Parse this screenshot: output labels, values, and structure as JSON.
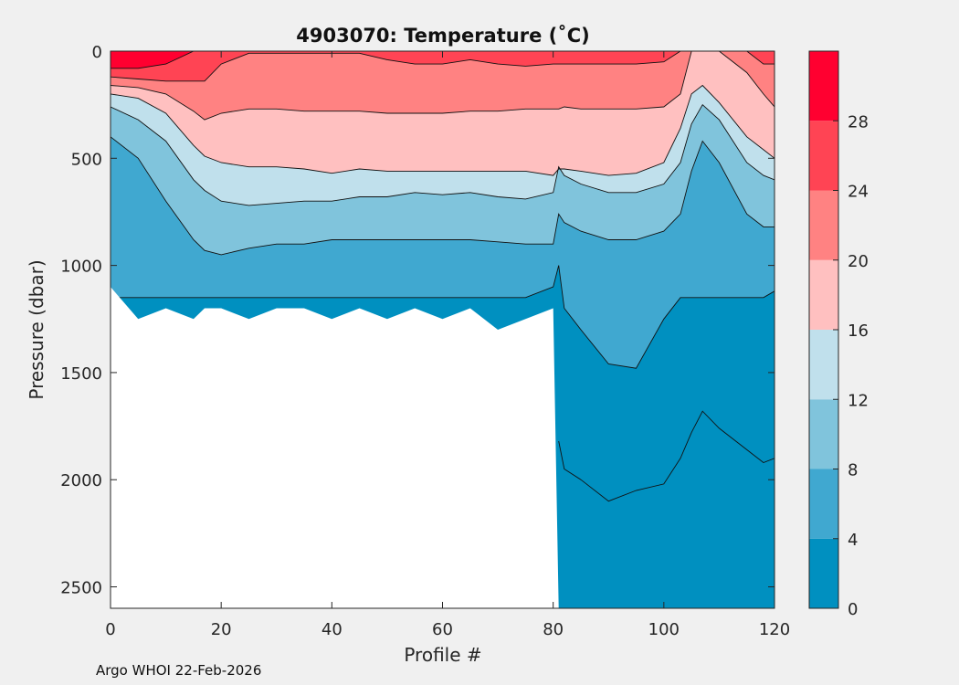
{
  "chart_data": {
    "type": "contour",
    "title": "4903070:  Temperature (˚C)",
    "xlabel": "Profile #",
    "ylabel": "Pressure (dbar)",
    "xlim": [
      0,
      120
    ],
    "ylim": [
      2600,
      0
    ],
    "x_ticks": [
      "0",
      "20",
      "40",
      "60",
      "80",
      "100",
      "120"
    ],
    "y_ticks": [
      "0",
      "500",
      "1000",
      "1500",
      "2000",
      "2500"
    ],
    "x_tick_values": [
      0,
      20,
      40,
      60,
      80,
      100,
      120
    ],
    "y_tick_values": [
      0,
      500,
      1000,
      1500,
      2000,
      2500
    ],
    "colorbar": {
      "levels": [
        0,
        4,
        8,
        12,
        16,
        20,
        24,
        28,
        32
      ],
      "tick_labels": [
        "0",
        "4",
        "8",
        "12",
        "16",
        "20",
        "24",
        "28"
      ],
      "tick_values": [
        0,
        4,
        8,
        12,
        16,
        20,
        24,
        28
      ],
      "colors": [
        "#0090c0",
        "#40a8d0",
        "#80c4dc",
        "#c0e0ec",
        "#ffc0c0",
        "#ff8282",
        "#ff4454",
        "#ff0030"
      ]
    },
    "profiles_x": [
      0,
      5,
      10,
      15,
      17,
      20,
      25,
      30,
      35,
      40,
      45,
      50,
      55,
      60,
      65,
      70,
      75,
      80,
      81,
      82,
      85,
      90,
      95,
      100,
      103,
      105,
      107,
      110,
      115,
      118,
      120
    ],
    "isotherms": [
      {
        "temp": 28,
        "depth": [
          80,
          80,
          60,
          0,
          0,
          0,
          0,
          0,
          0,
          0,
          0,
          0,
          0,
          0,
          0,
          0,
          0,
          0,
          0,
          0,
          0,
          0,
          0,
          0,
          0,
          0,
          0,
          0,
          0,
          0,
          0
        ]
      },
      {
        "temp": 24,
        "depth": [
          120,
          130,
          140,
          140,
          140,
          60,
          10,
          10,
          10,
          10,
          10,
          40,
          60,
          60,
          40,
          60,
          70,
          60,
          60,
          60,
          60,
          60,
          60,
          50,
          0,
          0,
          0,
          0,
          0,
          60,
          60
        ]
      },
      {
        "temp": 20,
        "depth": [
          160,
          170,
          200,
          280,
          320,
          290,
          270,
          270,
          280,
          280,
          280,
          290,
          290,
          290,
          280,
          280,
          270,
          270,
          270,
          260,
          270,
          270,
          270,
          260,
          200,
          0,
          0,
          0,
          100,
          200,
          260
        ]
      },
      {
        "temp": 16,
        "depth": [
          200,
          220,
          290,
          440,
          490,
          520,
          540,
          540,
          550,
          570,
          550,
          560,
          560,
          560,
          560,
          560,
          560,
          580,
          550,
          550,
          560,
          580,
          570,
          520,
          360,
          200,
          160,
          240,
          400,
          460,
          500
        ]
      },
      {
        "temp": 12,
        "depth": [
          260,
          320,
          420,
          600,
          650,
          700,
          720,
          710,
          700,
          700,
          680,
          680,
          660,
          670,
          660,
          680,
          690,
          660,
          540,
          580,
          620,
          660,
          660,
          620,
          520,
          340,
          250,
          320,
          520,
          580,
          600
        ]
      },
      {
        "temp": 8,
        "depth": [
          400,
          500,
          700,
          880,
          930,
          950,
          920,
          900,
          900,
          880,
          880,
          880,
          880,
          880,
          880,
          890,
          900,
          900,
          760,
          800,
          840,
          880,
          880,
          840,
          760,
          560,
          420,
          520,
          760,
          820,
          820
        ]
      },
      {
        "temp": 4,
        "depth": [
          1150,
          1150,
          1150,
          1150,
          1150,
          1150,
          1150,
          1150,
          1150,
          1150,
          1150,
          1150,
          1150,
          1150,
          1150,
          1150,
          1150,
          1100,
          1000,
          1200,
          1300,
          1460,
          1480,
          1250,
          1150,
          1150,
          1150,
          1150,
          1150,
          1150,
          1120
        ]
      },
      {
        "temp": 0,
        "depth": [
          2600,
          2600,
          2600,
          2600,
          2600,
          2600,
          2600,
          2600,
          2600,
          2600,
          2600,
          2600,
          2600,
          2600,
          2600,
          2600,
          2600,
          2600,
          1820,
          1950,
          2000,
          2100,
          2050,
          2020,
          1900,
          1780,
          1680,
          1760,
          1860,
          1920,
          1900
        ]
      }
    ],
    "max_depth": [
      1100,
      1250,
      1200,
      1250,
      1200,
      1200,
      1250,
      1200,
      1200,
      1250,
      1200,
      1250,
      1200,
      1250,
      1200,
      1300,
      1250,
      1200,
      2600,
      2600,
      2600,
      2600,
      2600,
      2600,
      2600,
      2600,
      2600,
      2600,
      2600,
      2600,
      2600
    ]
  },
  "footer": "Argo WHOI 22-Feb-2026"
}
